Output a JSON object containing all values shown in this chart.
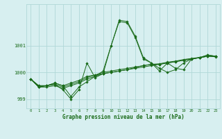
{
  "xlabel": "Graphe pression niveau de la mer (hPa)",
  "xlim": [
    -0.5,
    23.5
  ],
  "ylim": [
    998.65,
    1002.55
  ],
  "yticks": [
    999,
    1000,
    1001
  ],
  "xticks": [
    0,
    1,
    2,
    3,
    4,
    5,
    6,
    7,
    8,
    9,
    10,
    11,
    12,
    13,
    14,
    15,
    16,
    17,
    18,
    19,
    20,
    21,
    22,
    23
  ],
  "bg_color": "#d7eff0",
  "grid_color": "#b0d8d8",
  "line_color": "#1a6b1a",
  "series_main": [
    999.75,
    999.45,
    999.5,
    999.6,
    999.5,
    999.1,
    999.45,
    999.65,
    999.85,
    1000.05,
    1001.0,
    1001.95,
    1001.9,
    1001.35,
    1000.55,
    1000.35,
    1000.15,
    1000.0,
    1000.1,
    1000.35,
    1000.5,
    1000.55,
    1000.65,
    1000.6
  ],
  "series_b1": [
    999.75,
    999.5,
    999.5,
    999.6,
    999.5,
    999.6,
    999.7,
    999.85,
    999.9,
    999.95,
    1000.0,
    1000.05,
    1000.1,
    1000.15,
    1000.2,
    1000.25,
    1000.3,
    1000.35,
    1000.4,
    1000.45,
    1000.5,
    1000.55,
    1000.6,
    1000.6
  ],
  "series_b2": [
    999.75,
    999.5,
    999.5,
    999.55,
    999.45,
    999.55,
    999.65,
    999.8,
    999.9,
    1000.0,
    1000.05,
    1000.1,
    1000.15,
    1000.2,
    1000.25,
    1000.3,
    1000.3,
    1000.35,
    1000.4,
    1000.45,
    1000.5,
    1000.55,
    1000.6,
    1000.6
  ],
  "series_b3": [
    999.75,
    999.45,
    999.45,
    999.5,
    999.4,
    999.5,
    999.6,
    999.75,
    999.85,
    999.95,
    1000.0,
    1000.05,
    1000.1,
    1000.18,
    1000.25,
    1000.3,
    1000.32,
    1000.38,
    1000.42,
    1000.48,
    1000.52,
    1000.56,
    1000.6,
    1000.58
  ],
  "series_spike": [
    999.75,
    999.45,
    999.5,
    999.55,
    999.35,
    999.0,
    999.35,
    1000.35,
    999.8,
    999.95,
    1001.0,
    1001.9,
    1001.85,
    1001.3,
    1000.5,
    1000.35,
    1000.05,
    1000.35,
    1000.15,
    1000.1,
    1000.5,
    1000.55,
    1000.65,
    1000.6
  ]
}
